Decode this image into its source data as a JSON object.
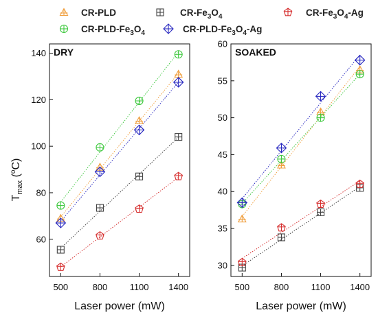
{
  "legend": [
    {
      "key": "cr_pld",
      "name": "CR-PLD",
      "name_main": "CR-PLD",
      "name_sub": "",
      "name_tail": "",
      "marker": "triangle",
      "color": "#f0a040"
    },
    {
      "key": "cr_fe3o4",
      "name": "CR-Fe3O4",
      "name_main": "CR-Fe",
      "name_sub": "3",
      "name_mid": "O",
      "name_sub2": "4",
      "name_tail": "",
      "marker": "square",
      "color": "#444444"
    },
    {
      "key": "cr_fe3o4_ag",
      "name": "CR-Fe3O4-Ag",
      "name_main": "CR-Fe",
      "name_sub": "3",
      "name_mid": "O",
      "name_sub2": "4",
      "name_tail": "-Ag",
      "marker": "pentagon",
      "color": "#d63030"
    },
    {
      "key": "cr_pld_fe3o4",
      "name": "CR-PLD-Fe3O4",
      "name_main": "CR-PLD-Fe",
      "name_sub": "3",
      "name_mid": "O",
      "name_sub2": "4",
      "name_tail": "",
      "marker": "circle",
      "color": "#3ec83e"
    },
    {
      "key": "cr_pld_fe3o4_ag",
      "name": "CR-PLD-Fe3O4-Ag",
      "name_main": "CR-PLD-Fe",
      "name_sub": "3",
      "name_mid": "O",
      "name_sub2": "4",
      "name_tail": "-Ag",
      "marker": "diamond",
      "color": "#2828c0"
    }
  ],
  "y_title": {
    "main": "T",
    "sub": "max",
    "unit_open": " (",
    "unit_deg": "o",
    "unit_close": "C)"
  },
  "chart_data": [
    {
      "type": "scatter",
      "title": "DRY",
      "xlabel": "Laser power (mW)",
      "ylabel": "Tmax (oC)",
      "categories": [
        500,
        800,
        1100,
        1400
      ],
      "ylim": [
        44,
        144
      ],
      "yticks": [
        60,
        80,
        100,
        120,
        140
      ],
      "series": [
        {
          "name": "CR-PLD",
          "values": [
            69,
            91,
            111,
            131
          ]
        },
        {
          "name": "CR-Fe3O4",
          "values": [
            55.5,
            73.5,
            87,
            104
          ]
        },
        {
          "name": "CR-Fe3O4-Ag",
          "values": [
            48,
            61.5,
            73,
            87
          ]
        },
        {
          "name": "CR-PLD-Fe3O4",
          "values": [
            74.5,
            99.5,
            119.5,
            139.5
          ]
        },
        {
          "name": "CR-PLD-Fe3O4-Ag",
          "values": [
            67,
            89,
            107,
            127.5
          ]
        }
      ]
    },
    {
      "type": "scatter",
      "title": "SOAKED",
      "xlabel": "Laser power (mW)",
      "ylabel": "",
      "categories": [
        500,
        800,
        1100,
        1400
      ],
      "ylim": [
        28.5,
        60
      ],
      "yticks": [
        30,
        35,
        40,
        45,
        50,
        55,
        60
      ],
      "series": [
        {
          "name": "CR-PLD",
          "values": [
            36.3,
            43.6,
            50.8,
            56.5
          ]
        },
        {
          "name": "CR-Fe3O4",
          "values": [
            29.7,
            33.8,
            37.2,
            40.5
          ]
        },
        {
          "name": "CR-Fe3O4-Ag",
          "values": [
            30.4,
            35.1,
            38.3,
            41
          ]
        },
        {
          "name": "CR-PLD-Fe3O4",
          "values": [
            38.3,
            44.4,
            50,
            55.9
          ]
        },
        {
          "name": "CR-PLD-Fe3O4-Ag",
          "values": [
            38.5,
            45.9,
            52.9,
            57.8
          ]
        }
      ]
    }
  ]
}
